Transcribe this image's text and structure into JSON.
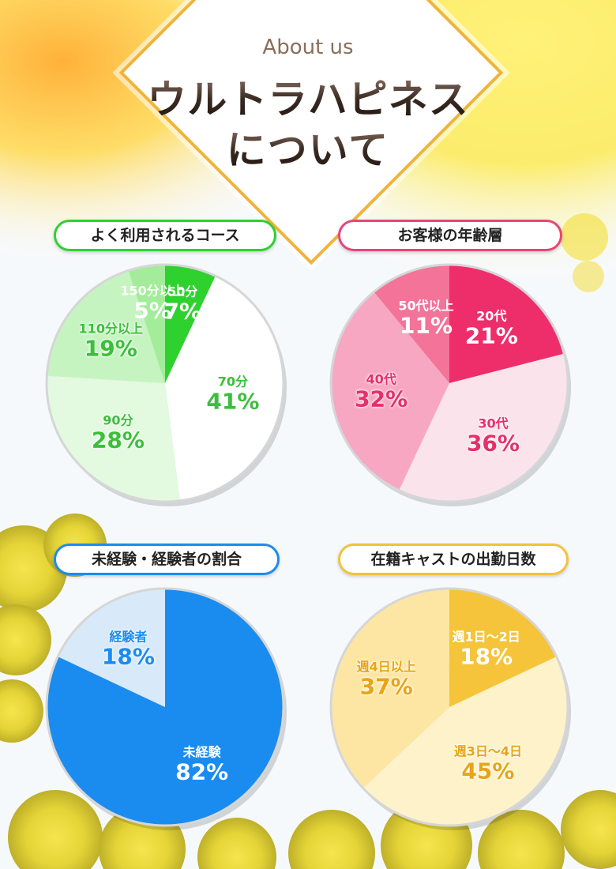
{
  "header": {
    "about": "About us",
    "title_line1": "ウルトラハピネス",
    "title_line2": "について"
  },
  "colors": {
    "green": "#2fd12f",
    "pink": "#e8457a",
    "blue": "#1a8cf0",
    "gold": "#f2c23a"
  },
  "chart_data": [
    {
      "type": "pie",
      "title": "よく利用されるコース",
      "slices": [
        {
          "label": "50分",
          "value": 7,
          "text": "7%"
        },
        {
          "label": "70分",
          "value": 41,
          "text": "41%"
        },
        {
          "label": "90分",
          "value": 28,
          "text": "28%"
        },
        {
          "label": "110分以上",
          "value": 19,
          "text": "19%"
        },
        {
          "label": "150分以上",
          "value": 5,
          "text": "5%"
        }
      ]
    },
    {
      "type": "pie",
      "title": "お客様の年齢層",
      "slices": [
        {
          "label": "20代",
          "value": 21,
          "text": "21%"
        },
        {
          "label": "30代",
          "value": 36,
          "text": "36%"
        },
        {
          "label": "40代",
          "value": 32,
          "text": "32%"
        },
        {
          "label": "50代以上",
          "value": 11,
          "text": "11%"
        }
      ]
    },
    {
      "type": "pie",
      "title": "未経験・経験者の割合",
      "slices": [
        {
          "label": "未経験",
          "value": 82,
          "text": "82%"
        },
        {
          "label": "経験者",
          "value": 18,
          "text": "18%"
        }
      ]
    },
    {
      "type": "pie",
      "title": "在籍キャストの出勤日数",
      "slices": [
        {
          "label": "週1日～2日",
          "value": 18,
          "text": "18%"
        },
        {
          "label": "週3日～4日",
          "value": 45,
          "text": "45%"
        },
        {
          "label": "週4日以上",
          "value": 37,
          "text": "37%"
        }
      ]
    }
  ]
}
